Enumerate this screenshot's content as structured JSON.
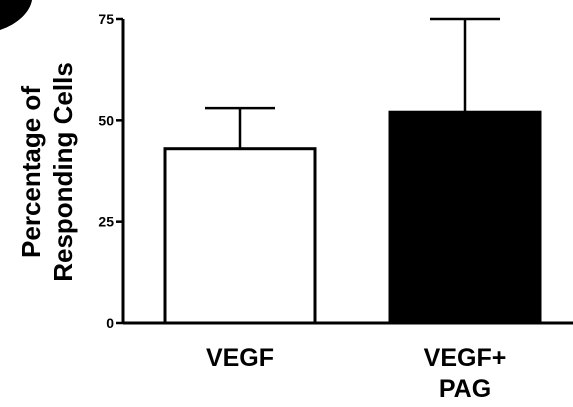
{
  "chart_data": {
    "type": "bar",
    "title": "",
    "xlabel": "",
    "ylabel_lines": [
      "Percentage of",
      "Responding Cells"
    ],
    "ylim": [
      0,
      75
    ],
    "yticks": [
      0,
      25,
      50,
      75
    ],
    "ytick_labels": [
      "0",
      "25",
      "50",
      "75"
    ],
    "categories": [
      {
        "lines": [
          "VEGF"
        ]
      },
      {
        "lines": [
          "VEGF+",
          "PAG"
        ]
      }
    ],
    "values": [
      43,
      52
    ],
    "errors": [
      10,
      23
    ],
    "bar_colors": [
      "#ffffff",
      "#000000"
    ],
    "grid": false,
    "legend": "none"
  }
}
